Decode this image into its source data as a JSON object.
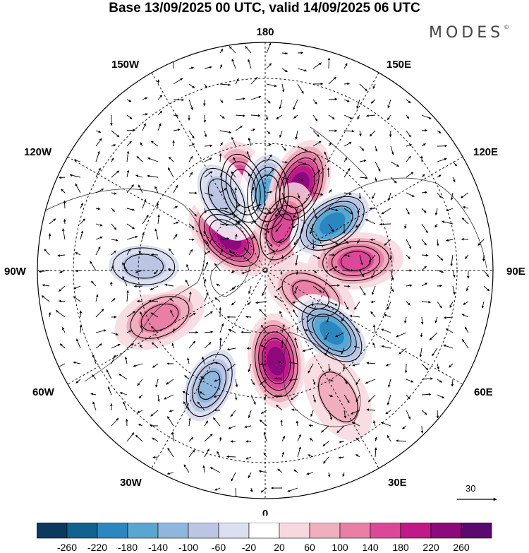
{
  "title": "Base 13/09/2025 00 UTC, valid 14/09/2025 06 UTC",
  "brand": "MODES",
  "brand_mark": "©",
  "longitude_labels": {
    "top": "180",
    "bottom": "0",
    "left": "90W",
    "right": "90E",
    "upper_left_1": "150W",
    "upper_left_2": "120W",
    "upper_right_1": "150E",
    "upper_right_2": "120E",
    "lower_left_1": "60W",
    "lower_left_2": "30W",
    "lower_right_1": "60E",
    "lower_right_2": "30E"
  },
  "reference_vector": {
    "value": "30"
  },
  "colorbar": {
    "ticks": [
      "-260",
      "-220",
      "-180",
      "-140",
      "-100",
      "-60",
      "-20",
      "20",
      "60",
      "100",
      "140",
      "180",
      "220",
      "260"
    ],
    "colors": [
      "#0b3a5c",
      "#11628f",
      "#2a87c0",
      "#5aa6d2",
      "#8fb6dc",
      "#bcc6e4",
      "#dcdff0",
      "#ffffff",
      "#f7d8de",
      "#f1aebe",
      "#ea7fa6",
      "#dc4898",
      "#bf198a",
      "#8c0a7e",
      "#5c086e"
    ]
  },
  "anomalies": [
    {
      "name": "pos-north-pacific",
      "lat": 62,
      "lon": -165,
      "value": 160
    },
    {
      "name": "neg-bering",
      "lat": 65,
      "lon": 178,
      "value": -190
    },
    {
      "name": "pos-kamchatka",
      "lat": 60,
      "lon": 158,
      "value": 200
    },
    {
      "name": "pos-chukotka",
      "lat": 75,
      "lon": 158,
      "value": 140
    },
    {
      "name": "neg-yakutia",
      "lat": 63,
      "lon": 125,
      "value": -230
    },
    {
      "name": "pos-west-siberia",
      "lat": 60,
      "lon": 96,
      "value": 120
    },
    {
      "name": "pos-kara-sea",
      "lat": 73,
      "lon": 62,
      "value": 100
    },
    {
      "name": "neg-scandinavia",
      "lat": 60,
      "lon": 47,
      "value": -210
    },
    {
      "name": "pos-north-atlantic",
      "lat": 60,
      "lon": 7,
      "value": 230
    },
    {
      "name": "neg-mid-atlantic",
      "lat": 48,
      "lon": -26,
      "value": -140
    },
    {
      "name": "pos-canada-east",
      "lat": 52,
      "lon": -66,
      "value": 100
    },
    {
      "name": "pos-beaufort",
      "lat": 74,
      "lon": -132,
      "value": 220
    },
    {
      "name": "neg-alaska-coast",
      "lat": 62,
      "lon": -150,
      "value": -100
    },
    {
      "name": "neg-hudson",
      "lat": 50,
      "lon": -92,
      "value": -80
    },
    {
      "name": "pos-east-europe",
      "lat": 42,
      "lon": 30,
      "value": 60
    }
  ]
}
